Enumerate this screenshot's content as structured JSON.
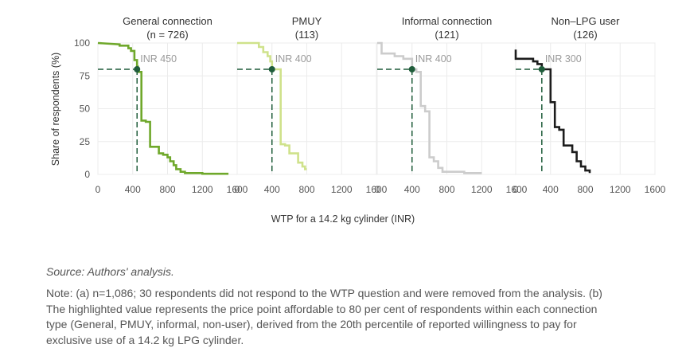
{
  "chart_data": {
    "type": "line",
    "ylabel": "Share of respondents (%)",
    "xlabel": "WTP for a 14.2 kg cylinder (INR)",
    "xlim": [
      0,
      1600
    ],
    "ylim": [
      0,
      100
    ],
    "xticks": [
      0,
      400,
      800,
      1200,
      1600
    ],
    "yticks": [
      0,
      25,
      50,
      75,
      100
    ],
    "reference_share": 80,
    "panels": [
      {
        "title": "General connection",
        "subtitle": "(n = 726)",
        "color": "#6fa82b",
        "highlight_label": "INR 450",
        "highlight_x": 450,
        "series": [
          [
            0,
            100
          ],
          [
            250,
            99
          ],
          [
            250,
            98
          ],
          [
            350,
            98
          ],
          [
            350,
            96
          ],
          [
            380,
            96
          ],
          [
            380,
            94
          ],
          [
            420,
            94
          ],
          [
            420,
            87
          ],
          [
            450,
            87
          ],
          [
            450,
            82
          ],
          [
            460,
            82
          ],
          [
            460,
            78
          ],
          [
            500,
            78
          ],
          [
            500,
            41
          ],
          [
            550,
            41
          ],
          [
            550,
            40
          ],
          [
            600,
            40
          ],
          [
            600,
            21
          ],
          [
            700,
            21
          ],
          [
            700,
            16
          ],
          [
            750,
            16
          ],
          [
            750,
            15
          ],
          [
            800,
            15
          ],
          [
            800,
            13
          ],
          [
            830,
            13
          ],
          [
            830,
            10
          ],
          [
            870,
            10
          ],
          [
            870,
            7
          ],
          [
            900,
            7
          ],
          [
            900,
            4
          ],
          [
            950,
            4
          ],
          [
            950,
            2
          ],
          [
            1000,
            2
          ],
          [
            1000,
            1
          ],
          [
            1200,
            1
          ],
          [
            1200,
            0.5
          ],
          [
            1500,
            0.5
          ]
        ]
      },
      {
        "title": "PMUY",
        "subtitle": "(113)",
        "color": "#cfe28b",
        "highlight_label": "INR 400",
        "highlight_x": 400,
        "series": [
          [
            0,
            100
          ],
          [
            250,
            100
          ],
          [
            250,
            97
          ],
          [
            300,
            97
          ],
          [
            300,
            93
          ],
          [
            350,
            93
          ],
          [
            350,
            90
          ],
          [
            380,
            90
          ],
          [
            380,
            86
          ],
          [
            400,
            86
          ],
          [
            400,
            80
          ],
          [
            500,
            80
          ],
          [
            500,
            23
          ],
          [
            550,
            23
          ],
          [
            550,
            22
          ],
          [
            600,
            22
          ],
          [
            600,
            16
          ],
          [
            700,
            16
          ],
          [
            700,
            9
          ],
          [
            750,
            9
          ],
          [
            750,
            6
          ],
          [
            780,
            6
          ],
          [
            780,
            4
          ],
          [
            800,
            4
          ]
        ]
      },
      {
        "title": "Informal connection",
        "subtitle": "(121)",
        "color": "#cccccc",
        "highlight_label": "INR 400",
        "highlight_x": 400,
        "series": [
          [
            0,
            100
          ],
          [
            50,
            100
          ],
          [
            50,
            92
          ],
          [
            200,
            92
          ],
          [
            200,
            90
          ],
          [
            300,
            90
          ],
          [
            300,
            88
          ],
          [
            400,
            88
          ],
          [
            400,
            80
          ],
          [
            450,
            80
          ],
          [
            450,
            78
          ],
          [
            500,
            78
          ],
          [
            500,
            52
          ],
          [
            550,
            52
          ],
          [
            550,
            48
          ],
          [
            600,
            48
          ],
          [
            600,
            13
          ],
          [
            650,
            13
          ],
          [
            650,
            10
          ],
          [
            700,
            10
          ],
          [
            700,
            5
          ],
          [
            750,
            5
          ],
          [
            750,
            2
          ],
          [
            1000,
            2
          ],
          [
            1000,
            1
          ],
          [
            1200,
            1
          ]
        ]
      },
      {
        "title": "Non–LPG user",
        "subtitle": "(126)",
        "color": "#1c1c1c",
        "highlight_label": "INR 300",
        "highlight_x": 300,
        "series": [
          [
            0,
            95
          ],
          [
            0,
            88
          ],
          [
            200,
            88
          ],
          [
            200,
            86
          ],
          [
            250,
            86
          ],
          [
            250,
            84
          ],
          [
            300,
            84
          ],
          [
            300,
            80
          ],
          [
            400,
            80
          ],
          [
            400,
            55
          ],
          [
            450,
            55
          ],
          [
            450,
            36
          ],
          [
            500,
            36
          ],
          [
            500,
            34
          ],
          [
            550,
            34
          ],
          [
            550,
            22
          ],
          [
            650,
            22
          ],
          [
            650,
            17
          ],
          [
            700,
            17
          ],
          [
            700,
            10
          ],
          [
            750,
            10
          ],
          [
            750,
            6
          ],
          [
            800,
            6
          ],
          [
            800,
            3
          ],
          [
            850,
            3
          ],
          [
            850,
            1
          ]
        ]
      }
    ]
  },
  "source": "Source: Authors' analysis.",
  "note_lines": [
    "Note: (a) n=1,086; 30 respondents did not respond to the WTP question and were removed from the analysis. (b)",
    "The highlighted value represents the price point affordable to 80 per cent of respondents within each connection",
    "type (General, PMUY, informal, non-user), derived from the 20th percentile of reported willingness to pay for",
    "exclusive use of a 14.2 kg LPG cylinder."
  ]
}
